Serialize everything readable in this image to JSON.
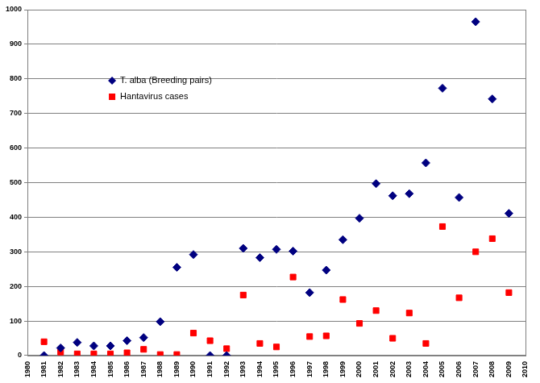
{
  "chart_data": {
    "type": "scatter",
    "x": [
      1981,
      1982,
      1983,
      1984,
      1985,
      1986,
      1987,
      1988,
      1989,
      1990,
      1991,
      1992,
      1993,
      1994,
      1995,
      1996,
      1997,
      1998,
      1999,
      2000,
      2001,
      2002,
      2003,
      2004,
      2005,
      2006,
      2007,
      2008,
      2009
    ],
    "series": [
      {
        "name": "T. alba (Breeding pairs)",
        "color": "#000080",
        "marker": "diamond",
        "values": [
          0,
          22,
          38,
          28,
          28,
          43,
          52,
          98,
          255,
          292,
          0,
          0,
          310,
          283,
          307,
          302,
          182,
          247,
          335,
          397,
          497,
          462,
          468,
          557,
          773,
          457,
          965,
          742,
          411
        ]
      },
      {
        "name": "Hantavirus cases",
        "color": "#ff0000",
        "marker": "square",
        "values": [
          40,
          10,
          5,
          5,
          5,
          8,
          18,
          3,
          3,
          65,
          43,
          20,
          175,
          35,
          25,
          227,
          55,
          57,
          162,
          93,
          130,
          50,
          123,
          35,
          373,
          167,
          300,
          338,
          182
        ]
      }
    ],
    "xlim": [
      1980,
      2010
    ],
    "xticks": [
      1980,
      1981,
      1982,
      1983,
      1984,
      1985,
      1986,
      1987,
      1988,
      1989,
      1990,
      1991,
      1992,
      1993,
      1994,
      1995,
      1996,
      1997,
      1998,
      1999,
      2000,
      2001,
      2002,
      2003,
      2004,
      2005,
      2006,
      2007,
      2008,
      2009,
      2010
    ],
    "ylim": [
      0,
      1000
    ],
    "yticks": [
      0,
      100,
      200,
      300,
      400,
      500,
      600,
      700,
      800,
      900,
      1000
    ],
    "grid": true,
    "legend": "upper left"
  }
}
